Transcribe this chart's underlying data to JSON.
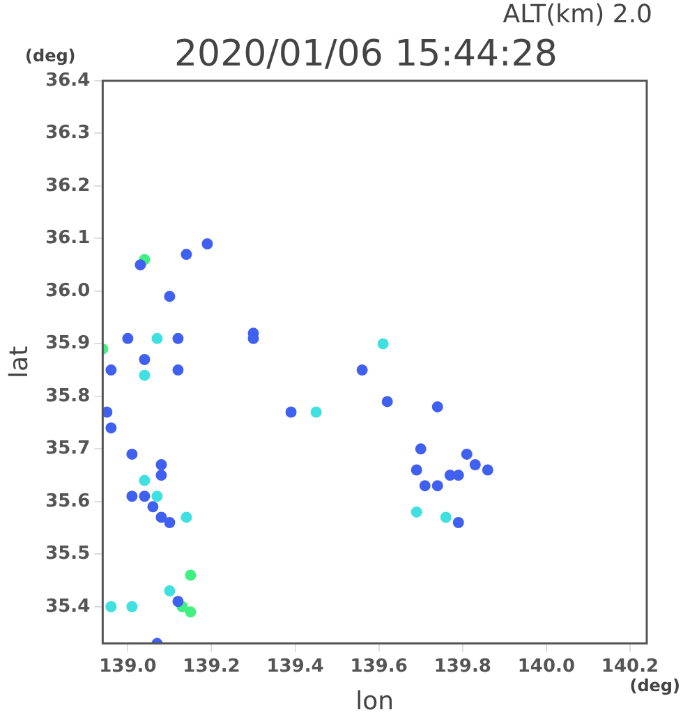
{
  "chart_data": {
    "type": "scatter",
    "title": "2020/01/06 15:44:28",
    "subtitle": "ALT(km) 2.0",
    "xlabel": "lon",
    "ylabel": "lat",
    "annotations": [
      "(deg)",
      "(deg)"
    ],
    "xlim": [
      138.94,
      140.24
    ],
    "ylim": [
      35.33,
      36.4
    ],
    "xticks": [
      {
        "value": 139,
        "label": "139.0"
      },
      139.2,
      139.4,
      139.6,
      139.8,
      {
        "value": 140,
        "label": "140.0"
      },
      140.2
    ],
    "yticks": [
      35.4,
      35.5,
      35.6,
      35.7,
      35.8,
      35.9,
      {
        "value": 36,
        "label": "36.0"
      },
      36.1,
      36.2,
      36.3,
      36.4
    ],
    "grid": false,
    "legend": false,
    "marker": "circle",
    "series": [
      {
        "color": "#4060f0",
        "x": [
          139.03,
          139.1,
          139.14,
          139.19,
          139.0,
          139.12,
          138.96,
          139.12,
          138.95,
          138.96,
          139.01,
          139.08,
          139.08,
          139.01,
          139.04,
          139.06,
          139.08,
          139.1,
          139.12,
          139.07,
          139.3,
          139.3,
          139.39,
          139.56,
          139.62,
          139.74,
          139.7,
          139.69,
          139.71,
          139.74,
          139.77,
          139.79,
          139.83,
          139.86,
          139.81,
          139.79,
          139.04
        ],
        "values": [
          36.05,
          35.99,
          36.07,
          36.09,
          35.91,
          35.91,
          35.85,
          35.85,
          35.77,
          35.74,
          35.69,
          35.67,
          35.65,
          35.61,
          35.61,
          35.59,
          35.57,
          35.56,
          35.41,
          35.33,
          35.92,
          35.91,
          35.77,
          35.85,
          35.79,
          35.78,
          35.7,
          35.66,
          35.63,
          35.63,
          35.65,
          35.65,
          35.67,
          35.66,
          35.69,
          35.56,
          35.87
        ]
      },
      {
        "color": "#40e0e0",
        "x": [
          139.07,
          139.04,
          139.04,
          139.07,
          139.14,
          138.96,
          139.01,
          139.1,
          139.45,
          139.61,
          139.69,
          139.76
        ],
        "values": [
          35.91,
          35.84,
          35.64,
          35.61,
          35.57,
          35.4,
          35.4,
          35.43,
          35.77,
          35.9,
          35.58,
          35.57
        ]
      },
      {
        "color": "#40f080",
        "x": [
          139.04,
          138.94,
          139.15,
          139.13,
          139.15
        ],
        "values": [
          36.06,
          35.89,
          35.46,
          35.4,
          35.39
        ]
      }
    ]
  }
}
